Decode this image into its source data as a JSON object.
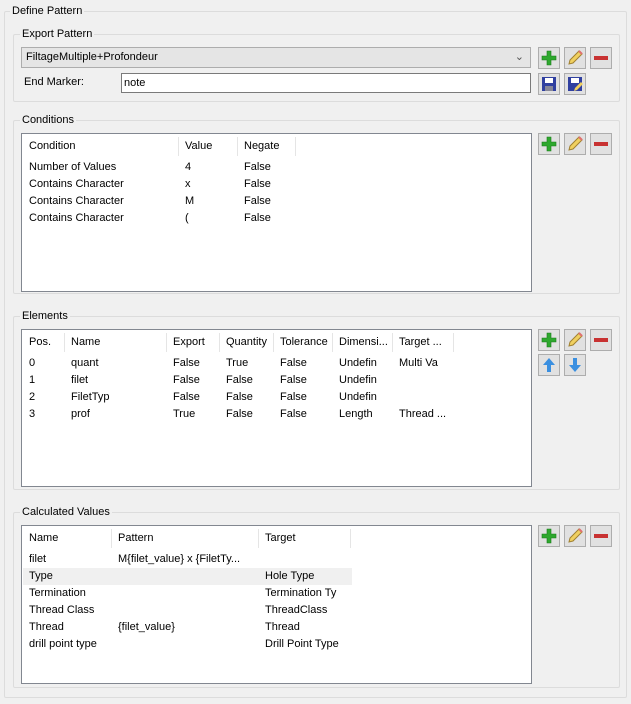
{
  "define_pattern": {
    "title": "Define Pattern"
  },
  "export_pattern": {
    "title": "Export Pattern",
    "selected": "FiltageMultiple+Profondeur",
    "end_marker_label": "End Marker:",
    "end_marker_value": "note"
  },
  "conditions": {
    "title": "Conditions",
    "columns": [
      "Condition",
      "Value",
      "Negate"
    ],
    "rows": [
      [
        "Number of Values",
        "4",
        "False"
      ],
      [
        "Contains Character",
        "x",
        "False"
      ],
      [
        "Contains Character",
        "M",
        "False"
      ],
      [
        "Contains Character",
        "(",
        "False"
      ]
    ]
  },
  "elements": {
    "title": "Elements",
    "columns": [
      "Pos.",
      "Name",
      "Export",
      "Quantity",
      "Tolerance",
      "Dimensi...",
      "Target ..."
    ],
    "rows": [
      [
        "0",
        "quant",
        "False",
        "True",
        "False",
        "Undefin",
        "Multi Va"
      ],
      [
        "1",
        "filet",
        "False",
        "False",
        "False",
        "Undefin",
        ""
      ],
      [
        "2",
        "FiletTyp",
        "False",
        "False",
        "False",
        "Undefin",
        ""
      ],
      [
        "3",
        "prof",
        "True",
        "False",
        "False",
        "Length",
        "Thread ..."
      ]
    ]
  },
  "calculated": {
    "title": "Calculated Values",
    "columns": [
      "Name",
      "Pattern",
      "Target"
    ],
    "rows": [
      [
        "filet",
        "M{filet_value} x {FiletTy...",
        ""
      ],
      [
        "Type",
        "",
        "Hole Type"
      ],
      [
        "Termination",
        "",
        "Termination Ty"
      ],
      [
        "Thread Class",
        "",
        "ThreadClass"
      ],
      [
        "Thread",
        "{filet_value}",
        "Thread"
      ],
      [
        "drill point type",
        "",
        "Drill Point Type"
      ]
    ],
    "selected_row": 1
  },
  "colors": {
    "add": "#2ea82e",
    "remove": "#c83232",
    "pencil": "#f0d060",
    "save": "#3040a0",
    "arrow": "#3a8fe0"
  }
}
